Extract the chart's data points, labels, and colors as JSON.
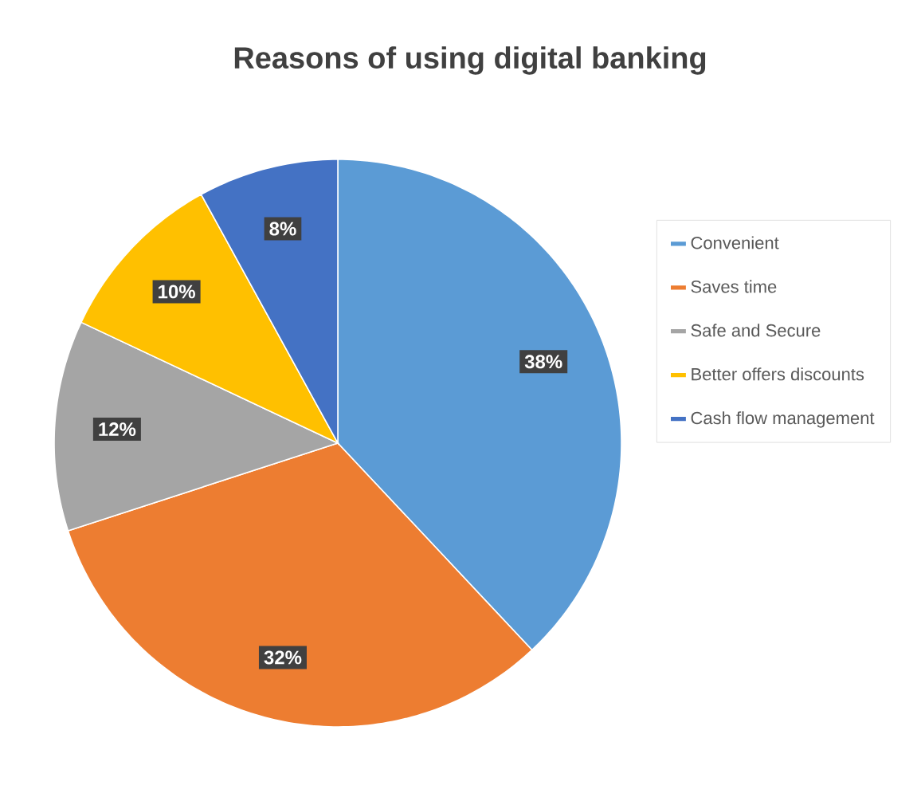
{
  "chart_data": {
    "type": "pie",
    "title": "Reasons of using digital banking",
    "categories": [
      "Convenient",
      "Saves time",
      "Safe and Secure",
      "Better offers discounts",
      "Cash flow management"
    ],
    "values": [
      38,
      32,
      12,
      10,
      8
    ],
    "value_labels": [
      "38%",
      "32%",
      "12%",
      "10%",
      "8%"
    ],
    "colors": [
      "#5b9bd5",
      "#ed7d31",
      "#a5a5a5",
      "#ffc000",
      "#4472c4"
    ],
    "legend": "right"
  }
}
